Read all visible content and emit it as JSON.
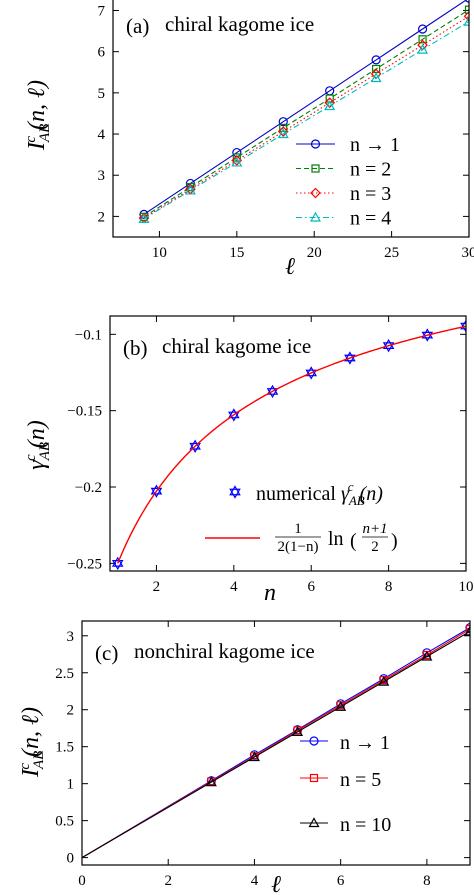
{
  "chart_data": [
    {
      "panel": "(a)",
      "title": "chiral kagome ice",
      "type": "line",
      "xlabel": "ℓ",
      "ylabel": "I",
      "ylabel_sup": "c",
      "ylabel_sub": "AB",
      "ylabel_args": "(n, ℓ)",
      "xlim": [
        7,
        30
      ],
      "ylim": [
        1.5,
        7.4
      ],
      "xticks": [
        10,
        15,
        20,
        25,
        30
      ],
      "yticks": [
        2,
        3,
        4,
        5,
        6,
        7
      ],
      "grid": false,
      "legend_position": "bottom-right",
      "x": [
        9,
        12,
        15,
        18,
        21,
        24,
        27,
        30
      ],
      "series": [
        {
          "name": "n → 1",
          "color": "#0000cc",
          "marker": "circle",
          "dash": "solid",
          "values": [
            2.05,
            2.8,
            3.55,
            4.3,
            5.05,
            5.8,
            6.55,
            7.3
          ]
        },
        {
          "name": "n = 2",
          "color": "#008000",
          "marker": "square",
          "dash": "dashed",
          "values": [
            1.99,
            2.71,
            3.43,
            4.15,
            4.86,
            5.58,
            6.3,
            7.02
          ]
        },
        {
          "name": "n = 3",
          "color": "#ff0000",
          "marker": "diamond",
          "dash": "dotted",
          "values": [
            1.96,
            2.66,
            3.36,
            4.06,
            4.76,
            5.46,
            6.16,
            6.86
          ]
        },
        {
          "name": "n = 4",
          "color": "#00bbbb",
          "marker": "triangle",
          "dash": "dashdot",
          "values": [
            1.94,
            2.63,
            3.31,
            4.0,
            4.68,
            5.36,
            6.05,
            6.73
          ]
        }
      ]
    },
    {
      "panel": "(b)",
      "title": "chiral kagome ice",
      "type": "scatter",
      "xlabel": "n",
      "ylabel": "γ",
      "ylabel_sup": "c",
      "ylabel_sub": "AB",
      "ylabel_args": "(n)",
      "xlim": [
        0.8,
        10
      ],
      "ylim": [
        -0.255,
        -0.088
      ],
      "xticks": [
        2,
        4,
        6,
        8,
        10
      ],
      "yticks": [
        -0.25,
        -0.2,
        -0.15,
        -0.1
      ],
      "ytick_labels": [
        "−0.25",
        "−0.2",
        "−0.15",
        "−0.1"
      ],
      "grid": false,
      "legend_position": "bottom-right",
      "x": [
        1,
        2,
        3,
        4,
        5,
        6,
        7,
        8,
        9,
        10
      ],
      "series": [
        {
          "name": "numerical",
          "legend_symbol": "γ",
          "legend_sup": "c",
          "legend_sub": "AB",
          "legend_args": "(n)",
          "color": "#0000ff",
          "marker": "hexagram",
          "values": [
            -0.25,
            -0.2027,
            -0.1733,
            -0.1528,
            -0.1374,
            -0.1253,
            -0.1155,
            -0.1074,
            -0.1005,
            -0.0946
          ]
        },
        {
          "name": "2(1−n)",
          "legend_numerator": "1",
          "legend_log": "ln",
          "legend_inner_numerator": "n+1",
          "legend_inner_denominator": "2",
          "color": "#ff0000",
          "kind": "curve",
          "formula": "ln((n+1)/2)/(2(1-n))"
        }
      ]
    },
    {
      "panel": "(c)",
      "title": "nonchiral kagome ice",
      "type": "line",
      "xlabel": "ℓ",
      "ylabel": "I",
      "ylabel_sup": "c",
      "ylabel_sub": "AB",
      "ylabel_args": "(n, ℓ)",
      "xlim": [
        0,
        9
      ],
      "ylim": [
        -0.1,
        3.2
      ],
      "xticks": [
        0,
        2,
        4,
        6,
        8
      ],
      "yticks": [
        0,
        0.5,
        1,
        1.5,
        2,
        2.5,
        3
      ],
      "grid": false,
      "legend_position": "bottom-right",
      "x": [
        3,
        4,
        5,
        6,
        7,
        8,
        9
      ],
      "series": [
        {
          "name": "n → 1",
          "color": "#0000ff",
          "marker": "circle",
          "values": [
            1.04,
            1.39,
            1.73,
            2.08,
            2.42,
            2.77,
            3.11
          ]
        },
        {
          "name": "n = 5",
          "color": "#ff0000",
          "marker": "square",
          "values": [
            1.03,
            1.37,
            1.72,
            2.06,
            2.4,
            2.74,
            3.09
          ]
        },
        {
          "name": "n = 10",
          "color": "#000000",
          "marker": "triangle",
          "values": [
            1.02,
            1.36,
            1.7,
            2.04,
            2.38,
            2.72,
            3.06
          ]
        }
      ]
    }
  ]
}
